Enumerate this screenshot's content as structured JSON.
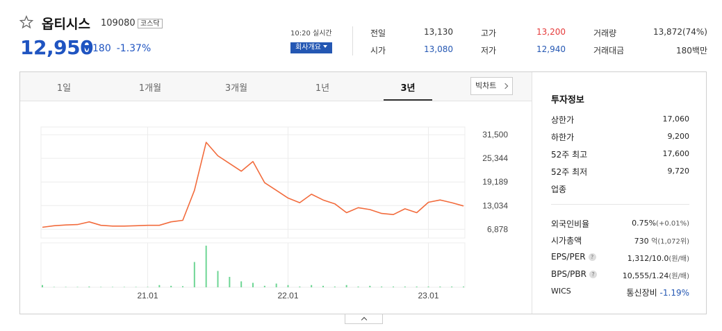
{
  "stock": {
    "name": "옵티시스",
    "code": "109080",
    "market": "코스닥",
    "price": "12,950",
    "change": "180",
    "change_pct": "-1.37%",
    "realtime": "10:20 실시간",
    "corp_button": "회사개요"
  },
  "quotes": [
    {
      "label": "전일",
      "value": "13,130",
      "color": "#333333"
    },
    {
      "label": "고가",
      "value": "13,200",
      "color": "#e53a3a"
    },
    {
      "label": "거래량",
      "value": "13,872(74%)",
      "color": "#333333"
    },
    {
      "label": "시가",
      "value": "13,080",
      "color": "#2457b3"
    },
    {
      "label": "저가",
      "value": "12,940",
      "color": "#2457b3"
    },
    {
      "label": "거래대금",
      "value": "180백만",
      "color": "#333333"
    }
  ],
  "tabs": [
    {
      "label": "1일",
      "active": false
    },
    {
      "label": "1개월",
      "active": false
    },
    {
      "label": "3개월",
      "active": false
    },
    {
      "label": "1년",
      "active": false
    },
    {
      "label": "3년",
      "active": true
    }
  ],
  "big_chart_button": "빅차트",
  "chart_data": {
    "type": "line",
    "y_ticks": [
      "31,500",
      "25,344",
      "19,189",
      "13,034",
      "6,878"
    ],
    "x_ticks": [
      "21.01",
      "22.01",
      "23.01"
    ],
    "ylim": [
      4600,
      33500
    ],
    "grid": true,
    "line_color": "#f26b3c",
    "volume_color": "#6ed694",
    "x": [
      "2020-04",
      "2020-05",
      "2020-06",
      "2020-07",
      "2020-08",
      "2020-09",
      "2020-10",
      "2020-11",
      "2020-12",
      "2021-01",
      "2021-02",
      "2021-03",
      "2021-04",
      "2021-05",
      "2021-06",
      "2021-07",
      "2021-08",
      "2021-09",
      "2021-10",
      "2021-11",
      "2021-12",
      "2022-01",
      "2022-02",
      "2022-03",
      "2022-04",
      "2022-05",
      "2022-06",
      "2022-07",
      "2022-08",
      "2022-09",
      "2022-10",
      "2022-11",
      "2022-12",
      "2023-01",
      "2023-02",
      "2023-03",
      "2023-04"
    ],
    "values": [
      7400,
      7800,
      8000,
      8100,
      8800,
      7900,
      7700,
      7700,
      7800,
      7900,
      7900,
      8800,
      9200,
      17000,
      29500,
      26000,
      24000,
      22000,
      24500,
      19000,
      17000,
      15000,
      13800,
      16000,
      14500,
      13500,
      11200,
      12500,
      12000,
      11000,
      10700,
      12200,
      11200,
      13900,
      14500,
      13800,
      12950
    ],
    "volume": [
      3,
      0.5,
      0.5,
      0.5,
      1,
      0.5,
      0.5,
      0.5,
      0.5,
      0.5,
      3,
      2,
      1.5,
      34,
      56,
      22,
      14,
      8,
      6,
      2,
      5,
      3,
      1,
      3,
      2,
      1,
      3,
      1,
      2,
      1,
      1,
      1,
      1,
      1,
      1,
      1,
      1
    ]
  },
  "investment": {
    "title": "투자정보",
    "rows1": [
      {
        "label": "상한가",
        "value": "17,060",
        "color": "#e53a3a"
      },
      {
        "label": "하한가",
        "value": "9,200",
        "color": "#2457b3"
      },
      {
        "label": "52주 최고",
        "value": "17,600",
        "color": "#222222"
      },
      {
        "label": "52주 최저",
        "value": "9,720",
        "color": "#222222"
      },
      {
        "label": "업종",
        "value": "",
        "color": "#222222"
      }
    ],
    "foreign": {
      "label": "외국인비율",
      "value": "0.75%",
      "sub": "(+0.01%)"
    },
    "mcap": {
      "label": "시가총액",
      "value": "730",
      "sub": "억(1,072위)"
    },
    "eps": {
      "label": "EPS/PER",
      "value": "1,312/10.0",
      "sub": "(원/배)"
    },
    "bps": {
      "label": "BPS/PBR",
      "value": "10,555/1.24",
      "sub": "(원/배)"
    },
    "wics": {
      "label": "WICS",
      "value": "통신장비",
      "change": "-1.19%"
    }
  }
}
